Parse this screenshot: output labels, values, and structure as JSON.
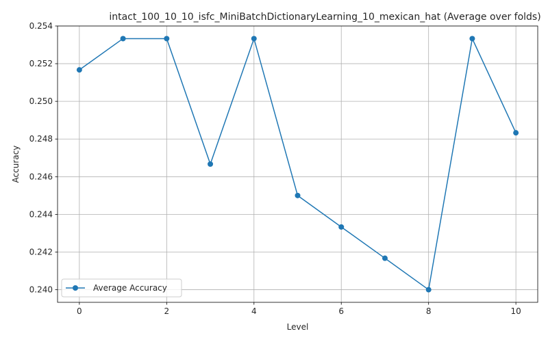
{
  "chart_data": {
    "type": "line",
    "title": "intact_100_10_10_isfc_MiniBatchDictionaryLearning_10_mexican_hat (Average over folds)",
    "xlabel": "Level",
    "ylabel": "Accuracy",
    "x": [
      0,
      1,
      2,
      3,
      4,
      5,
      6,
      7,
      8,
      9,
      10
    ],
    "series": [
      {
        "name": "Average Accuracy",
        "color": "#1f77b4",
        "marker": "circle",
        "values": [
          0.25167,
          0.25333,
          0.25333,
          0.24667,
          0.25333,
          0.245,
          0.24333,
          0.24167,
          0.24,
          0.25333,
          0.24833
        ]
      }
    ],
    "xlim": [
      -0.5,
      10.5
    ],
    "ylim": [
      0.23933,
      0.254
    ],
    "xticks": [
      0,
      2,
      4,
      6,
      8,
      10
    ],
    "yticks": [
      0.24,
      0.242,
      0.244,
      0.246,
      0.248,
      0.25,
      0.252,
      0.254
    ],
    "ytick_labels": [
      "0.240",
      "0.242",
      "0.244",
      "0.246",
      "0.248",
      "0.250",
      "0.252",
      "0.254"
    ],
    "grid": true,
    "legend_position": "lower-left"
  }
}
